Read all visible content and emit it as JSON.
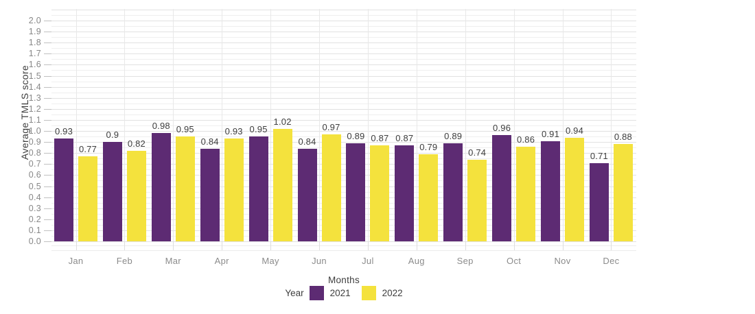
{
  "chart_data": {
    "type": "bar",
    "title": "",
    "xlabel": "Months",
    "ylabel": "Average TMLS score",
    "categories": [
      "Jan",
      "Feb",
      "Mar",
      "Apr",
      "May",
      "Jun",
      "Jul",
      "Aug",
      "Sep",
      "Oct",
      "Nov",
      "Dec"
    ],
    "series": [
      {
        "name": "2021",
        "color": "#5D2B73",
        "values": [
          0.93,
          0.9,
          0.98,
          0.84,
          0.95,
          0.84,
          0.89,
          0.87,
          0.89,
          0.96,
          0.91,
          0.71
        ]
      },
      {
        "name": "2022",
        "color": "#F4E23D",
        "values": [
          0.77,
          0.82,
          0.95,
          0.93,
          1.02,
          0.97,
          0.87,
          0.79,
          0.74,
          0.86,
          0.94,
          0.88
        ]
      }
    ],
    "ylim": [
      0.0,
      2.0
    ],
    "ytick_step": 0.1,
    "minor_gridline_step": 0.05,
    "ytick_labels": [
      "0.0",
      "0.1",
      "0.2",
      "0.3",
      "0.4",
      "0.5",
      "0.6",
      "0.7",
      "0.8",
      "0.9",
      "1.0",
      "1.1",
      "1.2",
      "1.3",
      "1.4",
      "1.5",
      "1.6",
      "1.7",
      "1.8",
      "1.9",
      "2.0"
    ],
    "grid": true,
    "bar_value_labels": true,
    "legend": {
      "title": "Year",
      "position": "bottom",
      "entries": [
        "2021",
        "2022"
      ]
    }
  },
  "palette": {
    "series_2021": "#5D2B73",
    "series_2022": "#F4E23D",
    "axis_text": "#8b8b8b",
    "label_text": "#3d3d3d",
    "gridline_major": "#e1e1e1",
    "gridline_minor": "#efefef"
  }
}
